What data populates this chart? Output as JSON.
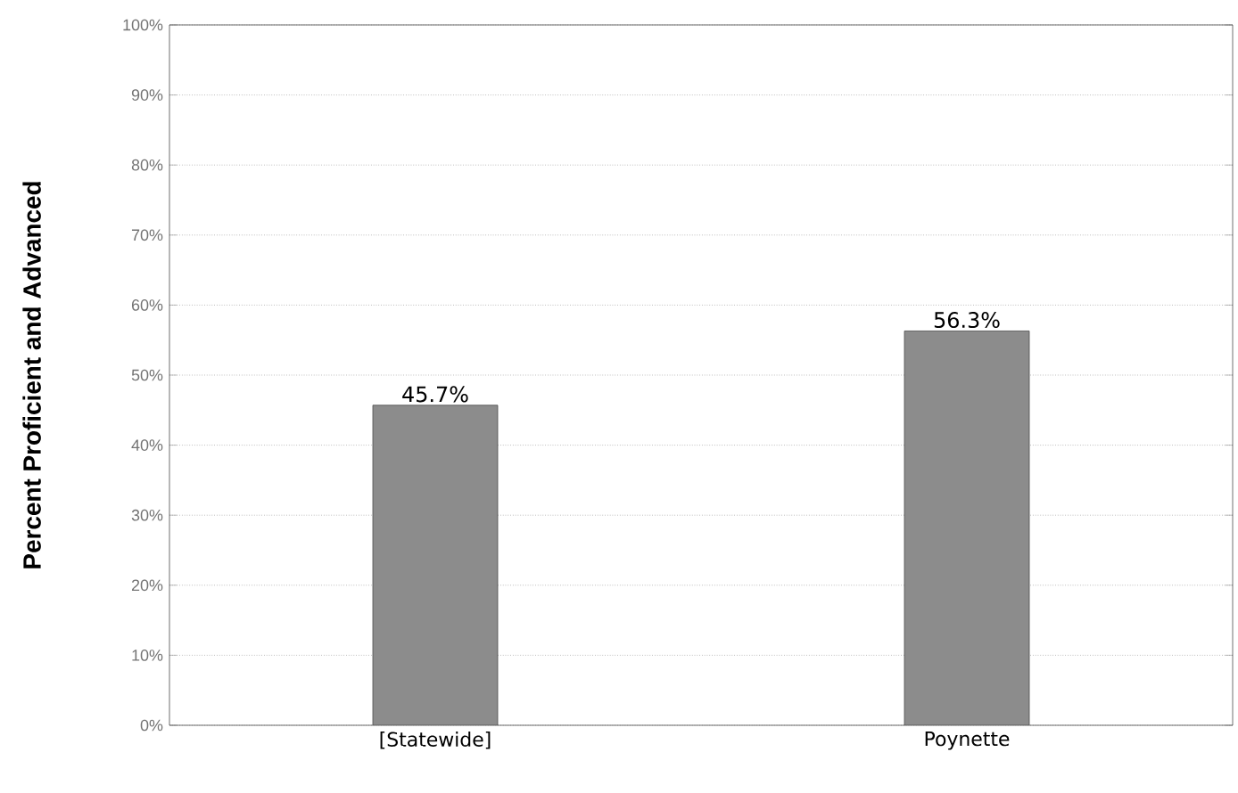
{
  "chart_data": {
    "type": "bar",
    "ylabel": "Percent Proficient and Advanced",
    "categories": [
      "[Statewide]",
      "Poynette"
    ],
    "values": [
      45.7,
      56.3
    ],
    "value_labels": [
      "45.7%",
      "56.3%"
    ],
    "color": "#8c8c8c",
    "ylim": [
      0,
      100
    ],
    "yticks": [
      {
        "value": 0,
        "label": "0%"
      },
      {
        "value": 10,
        "label": "10%"
      },
      {
        "value": 20,
        "label": "20%"
      },
      {
        "value": 30,
        "label": "30%"
      },
      {
        "value": 40,
        "label": "40%"
      },
      {
        "value": 50,
        "label": "50%"
      },
      {
        "value": 60,
        "label": "60%"
      },
      {
        "value": 70,
        "label": "70%"
      },
      {
        "value": 80,
        "label": "80%"
      },
      {
        "value": 90,
        "label": "90%"
      },
      {
        "value": 100,
        "label": "100%"
      }
    ],
    "grid": "y"
  }
}
